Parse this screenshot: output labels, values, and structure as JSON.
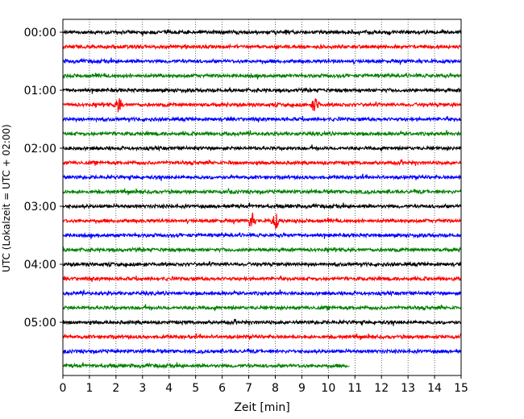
{
  "chart_data": {
    "type": "line",
    "title": "",
    "xlabel": "Zeit  [min]",
    "ylabel": "UTC (Lokalzeit = UTC + 02:00)",
    "xlim": [
      0,
      15
    ],
    "x_ticks": [
      "0",
      "1",
      "2",
      "3",
      "4",
      "5",
      "6",
      "7",
      "8",
      "9",
      "10",
      "11",
      "12",
      "13",
      "14",
      "15"
    ],
    "y_ticks": [
      "00:00",
      "01:00",
      "02:00",
      "03:00",
      "04:00",
      "05:00"
    ],
    "grid": "vertical dotted at each minute",
    "trace_interval_min": 15,
    "trace_colors": [
      "#000000",
      "#ff0000",
      "#0000ff",
      "#008000"
    ],
    "series": [
      {
        "start": "00:00",
        "end_min": 15,
        "color": "#000000"
      },
      {
        "start": "00:15",
        "end_min": 15,
        "color": "#ff0000"
      },
      {
        "start": "00:30",
        "end_min": 15,
        "color": "#0000ff"
      },
      {
        "start": "00:45",
        "end_min": 15,
        "color": "#008000"
      },
      {
        "start": "01:00",
        "end_min": 15,
        "color": "#000000"
      },
      {
        "start": "01:15",
        "end_min": 15,
        "color": "#ff0000",
        "events_min": [
          2.1,
          9.5
        ]
      },
      {
        "start": "01:30",
        "end_min": 15,
        "color": "#0000ff"
      },
      {
        "start": "01:45",
        "end_min": 15,
        "color": "#008000"
      },
      {
        "start": "02:00",
        "end_min": 15,
        "color": "#000000"
      },
      {
        "start": "02:15",
        "end_min": 15,
        "color": "#ff0000"
      },
      {
        "start": "02:30",
        "end_min": 15,
        "color": "#0000ff"
      },
      {
        "start": "02:45",
        "end_min": 15,
        "color": "#008000"
      },
      {
        "start": "03:00",
        "end_min": 15,
        "color": "#000000"
      },
      {
        "start": "03:15",
        "end_min": 15,
        "color": "#ff0000",
        "events_min": [
          7.1,
          8.0
        ]
      },
      {
        "start": "03:30",
        "end_min": 15,
        "color": "#0000ff"
      },
      {
        "start": "03:45",
        "end_min": 15,
        "color": "#008000"
      },
      {
        "start": "04:00",
        "end_min": 15,
        "color": "#000000"
      },
      {
        "start": "04:15",
        "end_min": 15,
        "color": "#ff0000"
      },
      {
        "start": "04:30",
        "end_min": 15,
        "color": "#0000ff"
      },
      {
        "start": "04:45",
        "end_min": 15,
        "color": "#008000"
      },
      {
        "start": "05:00",
        "end_min": 15,
        "color": "#000000"
      },
      {
        "start": "05:15",
        "end_min": 15,
        "color": "#ff0000"
      },
      {
        "start": "05:30",
        "end_min": 15,
        "color": "#0000ff"
      },
      {
        "start": "05:45",
        "end_min": 10.8,
        "color": "#008000"
      }
    ]
  }
}
